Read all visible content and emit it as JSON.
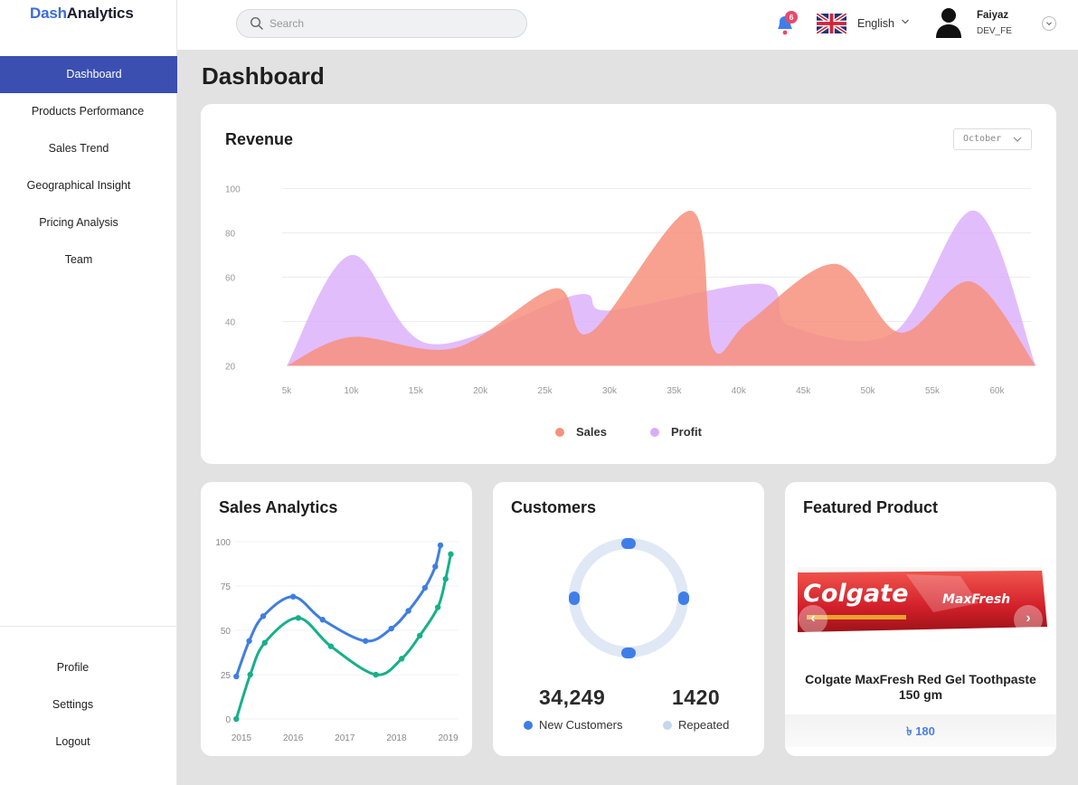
{
  "app": {
    "logo_part1": "Dash",
    "logo_part2": "Analytics"
  },
  "sidebar": {
    "items": [
      {
        "label": "Dashboard",
        "active": true
      },
      {
        "label": "Products Performance"
      },
      {
        "label": "Sales Trend"
      },
      {
        "label": "Geographical Insight"
      },
      {
        "label": "Pricing Analysis"
      },
      {
        "label": "Team"
      }
    ],
    "bottom_items": [
      {
        "label": "Profile"
      },
      {
        "label": "Settings"
      },
      {
        "label": "Logout"
      }
    ]
  },
  "header": {
    "search_placeholder": "Search",
    "notification_count": "6",
    "language": "English",
    "user_name": "Faiyaz",
    "user_role": "DEV_FE",
    "icons": [
      "search-icon",
      "bell-icon",
      "uk-flag-icon",
      "chevron-down-icon",
      "user-avatar-icon"
    ]
  },
  "page": {
    "title": "Dashboard"
  },
  "revenue": {
    "title": "Revenue",
    "month_select": "October",
    "legend_sales": "Sales",
    "legend_profit": "Profit"
  },
  "sales_analytics": {
    "title": "Sales Analytics"
  },
  "customers": {
    "title": "Customers",
    "new_value": "34,249",
    "new_label": "New Customers",
    "repeated_value": "1420",
    "repeated_label": "Repeated"
  },
  "featured": {
    "title": "Featured Product",
    "brand": "Colgate",
    "sub_brand": "MaxFresh",
    "product_name": "Colgate MaxFresh Red Gel Toothpaste 150 gm",
    "price": "৳ 180"
  },
  "colors": {
    "accent": "#3a4fb0",
    "sales": "#f7917d",
    "profit": "#d9acfb",
    "line_blue": "#3f7ee0",
    "line_green": "#17b08a",
    "new_customers": "#3f7ee8",
    "repeated": "#c4d6ef"
  },
  "chart_data": [
    {
      "type": "area",
      "title": "Revenue",
      "x": [
        5,
        10,
        15,
        20,
        25,
        30,
        35,
        40,
        45,
        50,
        55,
        60
      ],
      "x_tick_labels": [
        "5k",
        "10k",
        "15k",
        "20k",
        "25k",
        "30k",
        "35k",
        "40k",
        "45k",
        "50k",
        "55k",
        "60k"
      ],
      "ylim": [
        20,
        100
      ],
      "y_ticks": [
        20,
        40,
        60,
        80,
        100
      ],
      "grid": true,
      "legend": "bottom",
      "series": [
        {
          "name": "Sales",
          "x": [
            5,
            10,
            18,
            25.8,
            28.5,
            36.3,
            38,
            40.8,
            47.5,
            52.5,
            58,
            63
          ],
          "values": [
            20,
            33,
            28,
            55,
            35,
            90,
            28,
            40,
            66,
            35,
            58,
            20
          ]
        },
        {
          "name": "Profit",
          "x": [
            5,
            10,
            16,
            27.4,
            30,
            41.8,
            44,
            52,
            58.3,
            63
          ],
          "values": [
            20,
            70,
            30,
            52,
            45,
            57,
            38,
            35,
            90,
            20
          ]
        }
      ]
    },
    {
      "type": "line",
      "title": "Sales Analytics",
      "x_tick_labels": [
        "2015",
        "2016",
        "2017",
        "2018",
        "2019"
      ],
      "xlim": [
        2015,
        2019
      ],
      "ylim": [
        0,
        100
      ],
      "y_ticks": [
        0,
        25,
        50,
        75,
        100
      ],
      "series": [
        {
          "x": [
            2014.9,
            2015.15,
            2015.42,
            2016,
            2016.57,
            2017.4,
            2017.9,
            2018.23,
            2018.55,
            2018.75,
            2018.85
          ],
          "values": [
            24,
            44,
            58,
            69,
            56,
            44,
            51,
            61,
            74,
            86,
            98
          ]
        },
        {
          "x": [
            2014.9,
            2015.17,
            2015.45,
            2016.1,
            2016.73,
            2017.6,
            2018.1,
            2018.45,
            2018.8,
            2018.95,
            2019.05
          ],
          "values": [
            0,
            25,
            43,
            57,
            41,
            25,
            34,
            47,
            63,
            79,
            93
          ]
        }
      ]
    },
    {
      "type": "pie",
      "title": "Customers",
      "categories": [
        "New Customers",
        "Repeated"
      ],
      "values": [
        34249,
        1420
      ]
    }
  ]
}
